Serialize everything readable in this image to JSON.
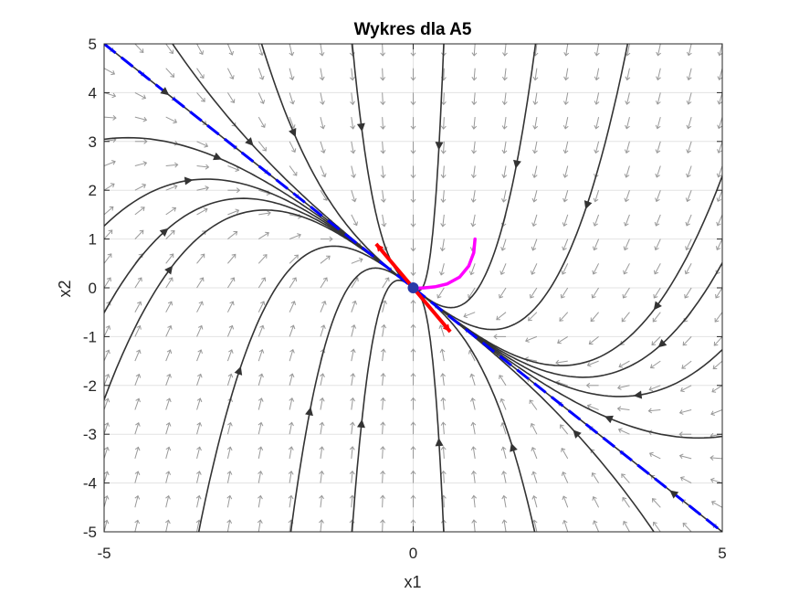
{
  "chart_data": {
    "type": "phase-portrait",
    "title": "Wykres dla A5",
    "xlabel": "x1",
    "ylabel": "x2",
    "xlim": [
      -5,
      5
    ],
    "ylim": [
      -5,
      5
    ],
    "x_ticks": [
      -5,
      0,
      5
    ],
    "y_ticks": [
      -5,
      -4,
      -3,
      -2,
      -1,
      0,
      1,
      2,
      3,
      4,
      5
    ],
    "grid": true,
    "equilibrium": [
      0,
      0
    ],
    "eigenvector_line": {
      "points": [
        [
          -5,
          5
        ],
        [
          5,
          -5
        ]
      ],
      "color": "#0000ff",
      "style": "dashed"
    },
    "eigenvector_arrows": {
      "points": [
        [
          -0.6,
          0.9
        ],
        [
          0,
          0
        ],
        [
          0.6,
          -0.9
        ]
      ],
      "color": "#ff0000"
    },
    "highlighted_trajectory": {
      "color": "#ff00ff",
      "points": [
        [
          1,
          1
        ],
        [
          0.98,
          0.72
        ],
        [
          0.9,
          0.45
        ],
        [
          0.75,
          0.22
        ],
        [
          0.55,
          0.08
        ],
        [
          0.35,
          0.02
        ],
        [
          0.18,
          0.0
        ],
        [
          0.06,
          -0.01
        ],
        [
          0,
          0
        ]
      ]
    },
    "colors": {
      "trajectory": "#333333",
      "vector_field": "#999999",
      "grid": "#e3e3e3",
      "axes": "#262626"
    }
  }
}
